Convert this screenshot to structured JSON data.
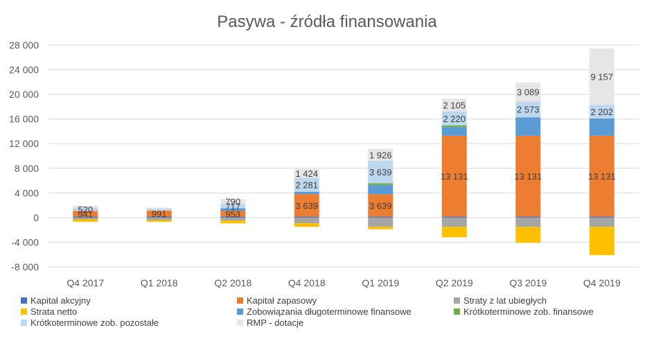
{
  "chart_data": {
    "type": "stacked-bar",
    "title": "Pasywa - źródła finansowania",
    "categories": [
      "Q4 2017",
      "Q1 2018",
      "Q2 2018",
      "Q4 2018",
      "Q1 2019",
      "Q2 2019",
      "Q3 2019",
      "Q4 2019"
    ],
    "ylim": [
      -8000,
      28000
    ],
    "yticks": [
      -8000,
      -4000,
      0,
      4000,
      8000,
      12000,
      16000,
      20000,
      24000,
      28000
    ],
    "ytick_labels": [
      "-8 000",
      "-4 000",
      "0",
      "4 000",
      "8 000",
      "12 000",
      "16 000",
      "20 000",
      "24 000",
      "28 000"
    ],
    "grid": true,
    "legend_position": "bottom",
    "series": [
      {
        "name": "Kapitał akcyjny",
        "color": "#4472C4",
        "values": [
          150,
          150,
          150,
          150,
          150,
          150,
          150,
          150
        ]
      },
      {
        "name": "Kapitał zapasowy",
        "color": "#ED7D31",
        "values": [
          941,
          991,
          953,
          3639,
          3639,
          13131,
          13131,
          13131
        ]
      },
      {
        "name": "Straty z lat ubiegłych",
        "color": "#A5A5A5",
        "values": [
          -300,
          -400,
          -500,
          -900,
          -1500,
          -1500,
          -1500,
          -1500
        ]
      },
      {
        "name": "Strata netto",
        "color": "#FFC000",
        "values": [
          -400,
          -300,
          -450,
          -600,
          -400,
          -1700,
          -2600,
          -4600
        ]
      },
      {
        "name": "Zobowiązania długoterminowe finansowe",
        "color": "#5B9BD5",
        "values": [
          0,
          0,
          400,
          400,
          1500,
          1400,
          3000,
          2800
        ]
      },
      {
        "name": "Krótkoterminowe zob. finansowe",
        "color": "#70AD47",
        "values": [
          0,
          0,
          0,
          0,
          300,
          300,
          0,
          0
        ]
      },
      {
        "name": "Krótkoterminowe zob. pozostałe",
        "color": "#BDD7EE",
        "values": [
          520,
          300,
          717,
          2281,
          3639,
          2220,
          2573,
          2202
        ]
      },
      {
        "name": "RMP - dotacje",
        "color": "#E7E6E6",
        "values": [
          300,
          200,
          790,
          1424,
          1926,
          2105,
          3089,
          9157
        ]
      }
    ],
    "data_labels": [
      {
        "category": "Q4 2017",
        "series": "Kapitał zapasowy",
        "text": "941"
      },
      {
        "category": "Q4 2017",
        "series": "Krótkoterminowe zob. pozostałe",
        "text": "520"
      },
      {
        "category": "Q1 2018",
        "series": "Kapitał zapasowy",
        "text": "991"
      },
      {
        "category": "Q2 2018",
        "series": "Kapitał zapasowy",
        "text": "953"
      },
      {
        "category": "Q2 2018",
        "series": "Krótkoterminowe zob. pozostałe",
        "text": "717"
      },
      {
        "category": "Q2 2018",
        "series": "RMP - dotacje",
        "text": "790"
      },
      {
        "category": "Q4 2018",
        "series": "Kapitał zapasowy",
        "text": "3 639"
      },
      {
        "category": "Q4 2018",
        "series": "Krótkoterminowe zob. pozostałe",
        "text": "2 281"
      },
      {
        "category": "Q4 2018",
        "series": "RMP - dotacje",
        "text": "1 424"
      },
      {
        "category": "Q1 2019",
        "series": "Kapitał zapasowy",
        "text": "3 639"
      },
      {
        "category": "Q1 2019",
        "series": "Krótkoterminowe zob. pozostałe",
        "text": "3 639"
      },
      {
        "category": "Q1 2019",
        "series": "RMP - dotacje",
        "text": "1 926"
      },
      {
        "category": "Q2 2019",
        "series": "Kapitał zapasowy",
        "text": "13 131"
      },
      {
        "category": "Q2 2019",
        "series": "Krótkoterminowe zob. pozostałe",
        "text": "2 220"
      },
      {
        "category": "Q2 2019",
        "series": "RMP - dotacje",
        "text": "2 105"
      },
      {
        "category": "Q3 2019",
        "series": "Kapitał zapasowy",
        "text": "13 131"
      },
      {
        "category": "Q3 2019",
        "series": "Krótkoterminowe zob. pozostałe",
        "text": "2 573"
      },
      {
        "category": "Q3 2019",
        "series": "RMP - dotacje",
        "text": "3 089"
      },
      {
        "category": "Q4 2019",
        "series": "Kapitał zapasowy",
        "text": "13 131"
      },
      {
        "category": "Q4 2019",
        "series": "Krótkoterminowe zob. pozostałe",
        "text": "2 202"
      },
      {
        "category": "Q4 2019",
        "series": "RMP - dotacje",
        "text": "9 157"
      }
    ]
  }
}
